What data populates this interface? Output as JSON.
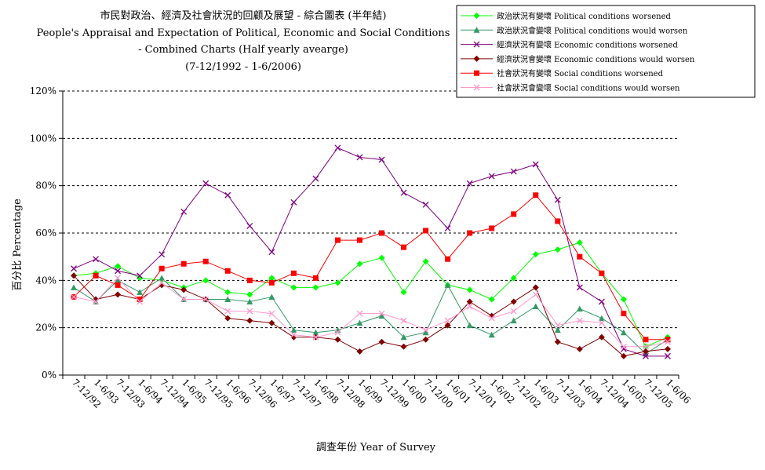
{
  "chart_data": {
    "type": "line",
    "title": [
      "市民對政治、經濟及社會狀況的回顧及展望 - 綜合圖表 (半年結)",
      "People's Appraisal and Expectation of Political, Economic and Social Conditions",
      "- Combined Charts  (Half yearly avearge)",
      "(7-12/1992 - 1-6/2006)"
    ],
    "xlabel": "調查年份 Year of Survey",
    "ylabel": "百分比 Percentage",
    "ylim": [
      0,
      120
    ],
    "yticks": [
      "0%",
      "20%",
      "40%",
      "60%",
      "80%",
      "100%",
      "120%"
    ],
    "grid": true,
    "legend_position": "top-right",
    "categories": [
      "7-12/92",
      "1-6/93",
      "7-12/93",
      "1-6/94",
      "7-12/94",
      "1-6/95",
      "7-12/95",
      "1-6/96",
      "7-12/96",
      "1-6/97",
      "7-12/97",
      "1-6/98",
      "7-12/98",
      "1-6/99",
      "7-12/99",
      "1-6/00",
      "7-12/00",
      "1-6/01",
      "7-12/01",
      "1-6/02",
      "7-12/02",
      "1-6/03",
      "7-12/03",
      "1-6/04",
      "7-12/04",
      "1-6/05",
      "7-12/05",
      "1-6/06"
    ],
    "series": [
      {
        "name": "政治狀況有變壞 Political conditions worsened",
        "color": "#00ff00",
        "marker": "diamond",
        "values": [
          42,
          43,
          46,
          41,
          40,
          37,
          40,
          35,
          34,
          41,
          37,
          37,
          39,
          47,
          49.5,
          35,
          48,
          38,
          36,
          32,
          41,
          51,
          53,
          56,
          43,
          32,
          12,
          16
        ]
      },
      {
        "name": "政治狀況會變壞 Political conditions would worsen",
        "color": "#339966",
        "marker": "triangle",
        "values": [
          37,
          31,
          40,
          35,
          41,
          32,
          32,
          32,
          31,
          33,
          19,
          18,
          19,
          22,
          25,
          16,
          18,
          38,
          21,
          17,
          23,
          29,
          19,
          28,
          24,
          18,
          9,
          15
        ]
      },
      {
        "name": "經濟狀況有變壞 Economic conditions worsened",
        "color": "#800080",
        "marker": "x",
        "values": [
          45,
          49,
          44,
          42,
          51,
          69,
          81,
          76,
          63,
          52,
          73,
          83,
          96,
          92,
          91,
          77,
          72,
          62,
          81,
          84,
          86,
          89,
          74,
          37,
          31,
          11,
          8,
          8
        ]
      },
      {
        "name": "經濟狀況會變壞 Economic conditions would worsen",
        "color": "#800000",
        "marker": "diamond",
        "values": [
          42,
          32,
          34,
          32,
          38,
          36,
          32,
          24,
          23,
          22,
          16,
          16,
          15,
          10,
          14,
          12,
          15,
          21,
          31,
          25,
          31,
          37,
          14,
          11,
          16,
          8,
          10,
          11
        ]
      },
      {
        "name": "社會狀況有變壞 Social conditions worsened",
        "color": "#ff0000",
        "marker": "square",
        "values": [
          33,
          42,
          38,
          32,
          45,
          47,
          48,
          44,
          40,
          39,
          43,
          41,
          57,
          57,
          60,
          54,
          61,
          49,
          60,
          62,
          68,
          76,
          65,
          50,
          43,
          26,
          15,
          15
        ]
      },
      {
        "name": "社會狀況會變壞 Social conditions would worsen",
        "color": "#ff99cc",
        "marker": "x",
        "values": [
          33,
          31,
          41,
          31,
          39,
          32,
          32,
          27,
          27,
          26,
          17,
          16,
          18,
          26,
          26,
          23,
          19,
          23,
          29,
          24,
          27,
          34,
          21,
          23,
          22,
          12,
          12,
          14
        ]
      }
    ]
  }
}
